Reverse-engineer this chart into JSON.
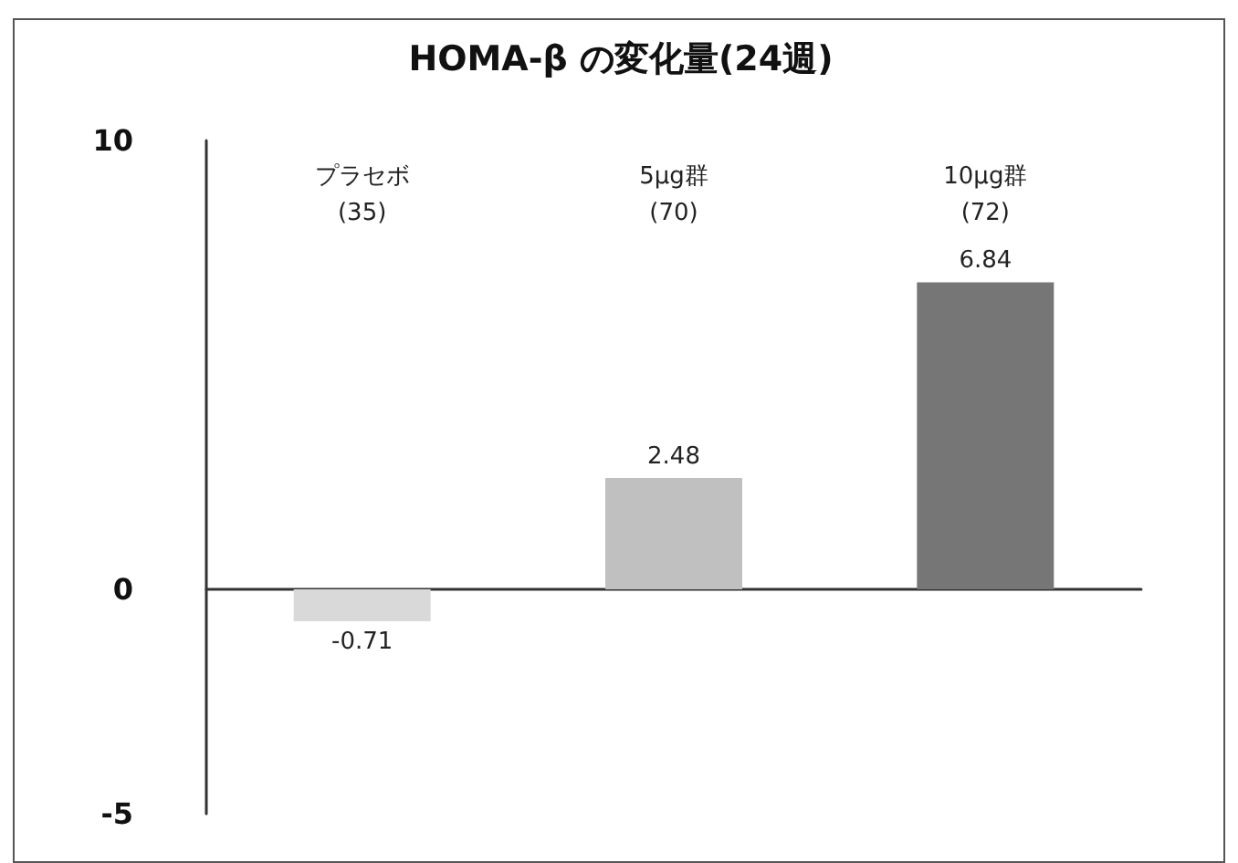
{
  "chart_data": {
    "type": "bar",
    "title": "HOMA-β の変化量(24週)",
    "categories": [
      "プラセボ\n(35)",
      "5μg群\n(70)",
      "10μg群\n(72)"
    ],
    "values": [
      -0.71,
      2.48,
      6.84
    ],
    "colors": [
      "#d9d9d9",
      "#c0c0c0",
      "#767676"
    ],
    "ylim": [
      -5,
      10
    ],
    "yticks": [
      -5,
      0,
      10
    ],
    "data_labels": true
  }
}
